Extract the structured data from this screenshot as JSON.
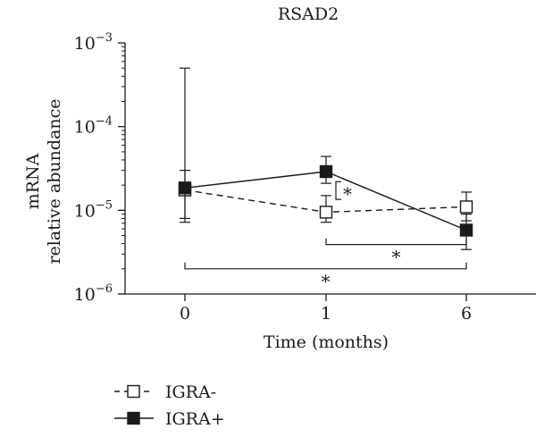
{
  "chart_data": {
    "type": "line",
    "title": "RSAD2",
    "xlabel": "Time (months)",
    "ylabel_lines": [
      "mRNA",
      "relative abundance"
    ],
    "yscale": "log",
    "ylim": [
      1e-06,
      0.001
    ],
    "y_ticks": [
      {
        "value": 1e-06,
        "base": "10",
        "exp": "−6"
      },
      {
        "value": 1e-05,
        "base": "10",
        "exp": "−5"
      },
      {
        "value": 0.0001,
        "base": "10",
        "exp": "−4"
      },
      {
        "value": 0.001,
        "base": "10",
        "exp": "−3"
      }
    ],
    "categories": [
      "0",
      "1",
      "6"
    ],
    "series": [
      {
        "name": "IGRA-",
        "style": "dashed",
        "marker": "open-square",
        "values": [
          1.75e-05,
          9.5e-06,
          1.1e-05
        ],
        "err_low": [
          8e-06,
          7.2e-06,
          7.5e-06
        ],
        "err_high": [
          3e-05,
          1.5e-05,
          1.65e-05
        ]
      },
      {
        "name": "IGRA+",
        "style": "solid",
        "marker": "filled-square",
        "values": [
          1.85e-05,
          2.9e-05,
          5.8e-06
        ],
        "err_low": [
          7.2e-06,
          2.1e-05,
          3.4e-06
        ],
        "err_high": [
          0.0005,
          4.4e-05,
          9e-06
        ]
      }
    ],
    "annotations": [
      {
        "label": "*",
        "type": "vertical-bracket",
        "category": "1",
        "low": 1.35e-05,
        "high": 2.2e-05
      },
      {
        "label": "*",
        "type": "horizontal-bracket",
        "from": "1",
        "to": "6",
        "level": 3.9e-06
      },
      {
        "label": "*",
        "type": "horizontal-bracket",
        "from": "0",
        "to": "6",
        "level": 2e-06
      }
    ],
    "legend_position": "bottom-left",
    "colors": {
      "ink": "#1a1a1a",
      "marker_fill": "#1a1a1a",
      "open_fill": "#ffffff"
    }
  }
}
